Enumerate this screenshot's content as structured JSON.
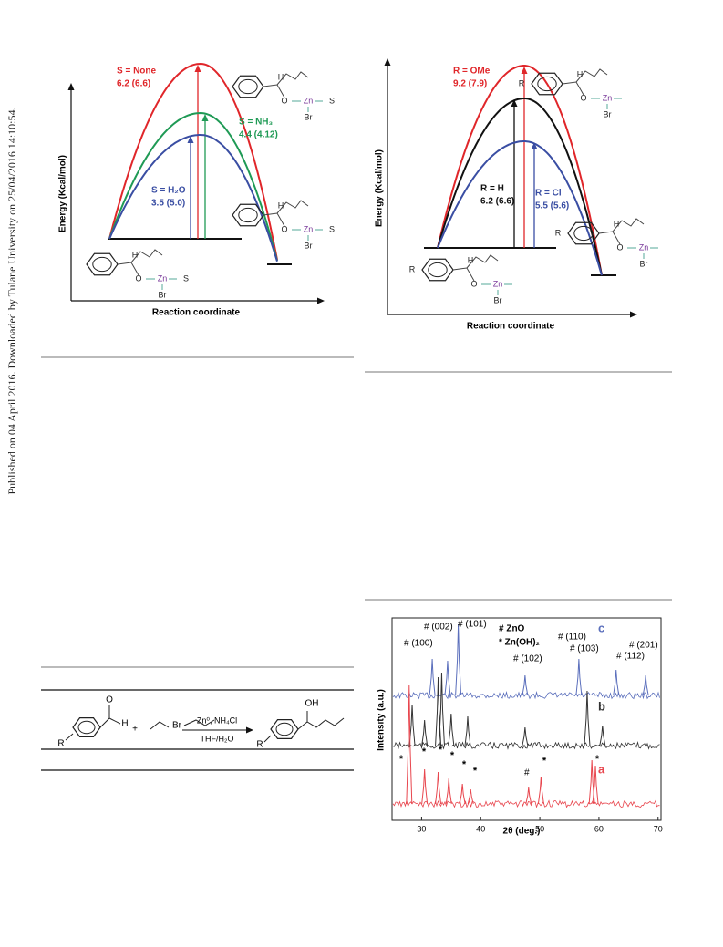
{
  "side_note": "Published on 04 April 2016. Downloaded by Tulane University on 25/04/2016 14:10:54.",
  "figure_left": {
    "y_axis_label": "Energy (Kcal/mol)",
    "x_axis_label": "Reaction coordinate",
    "barriers": [
      {
        "name": "S = None",
        "value_label": "6.2 (6.6)",
        "color": "#e0262a"
      },
      {
        "name": "S = NH₃",
        "value_label": "4.4 (4.12)",
        "color": "#1f9a55"
      },
      {
        "name": "S = H₂O",
        "value_label": "3.5 (5.0)",
        "color": "#3a4ea3"
      }
    ],
    "molecules": [
      {
        "labels": [
          "H",
          "O",
          "Zn",
          "S",
          "Br"
        ]
      },
      {
        "labels": [
          "H",
          "O",
          "Zn",
          "S",
          "Br"
        ]
      },
      {
        "labels": [
          "H",
          "O",
          "Zn",
          "S",
          "Br"
        ]
      }
    ]
  },
  "figure_right": {
    "y_axis_label": "Energy (Kcal/mol)",
    "x_axis_label": "Reaction coordinate",
    "barriers": [
      {
        "name": "R = OMe",
        "value_label": "9.2 (7.9)",
        "color": "#e0262a"
      },
      {
        "name": "R = H",
        "value_label": "6.2 (6.6)",
        "color": "#111111"
      },
      {
        "name": "R = Cl",
        "value_label": "5.5 (5.6)",
        "color": "#3a4ea3"
      }
    ],
    "molecules": [
      {
        "labels": [
          "R",
          "H",
          "O",
          "Zn",
          "Br"
        ]
      },
      {
        "labels": [
          "R",
          "H",
          "O",
          "Zn",
          "Br"
        ]
      },
      {
        "labels": [
          "R",
          "H",
          "O",
          "Zn",
          "Br"
        ]
      }
    ]
  },
  "scheme": {
    "reagents": "Zn⁰, NH₄Cl",
    "solvent": "THF/H₂O",
    "labels": [
      "O",
      "H",
      "R",
      "+",
      "Br",
      "R",
      "OH"
    ]
  },
  "xrd_figure": {
    "type": "line",
    "x_label": "2θ (deg.)",
    "y_label": "Intensity (a.u.)",
    "xlim": [
      25,
      70.5
    ],
    "xticks": [
      30,
      40,
      50,
      60,
      70
    ],
    "legend": [
      "# ZnO",
      "* Zn(OH)₂"
    ],
    "annotations": [
      "# (002)",
      "# (101)",
      "# (100)",
      "# (110)",
      "# (103)",
      "# (201)",
      "# (102)",
      "# (112)",
      "#"
    ],
    "asterisks": [
      "*",
      "*",
      "*",
      "*",
      "*",
      "*",
      "*",
      "*"
    ],
    "series": [
      {
        "name": "c",
        "color": "#5b6fbc",
        "peaks": [
          {
            "x": 31.8,
            "height": 40
          },
          {
            "x": 34.4,
            "height": 38
          },
          {
            "x": 36.2,
            "height": 78
          },
          {
            "x": 47.5,
            "height": 22
          },
          {
            "x": 56.6,
            "height": 40
          },
          {
            "x": 62.9,
            "height": 28
          },
          {
            "x": 67.9,
            "height": 22
          }
        ]
      },
      {
        "name": "b",
        "color": "#333333",
        "peaks": [
          {
            "x": 28.4,
            "height": 45
          },
          {
            "x": 30.5,
            "height": 28
          },
          {
            "x": 32.8,
            "height": 75
          },
          {
            "x": 33.4,
            "height": 80
          },
          {
            "x": 35.0,
            "height": 35
          },
          {
            "x": 37.8,
            "height": 32
          },
          {
            "x": 47.5,
            "height": 20
          },
          {
            "x": 58.0,
            "height": 60
          },
          {
            "x": 60.6,
            "height": 22
          }
        ]
      },
      {
        "name": "a",
        "color": "#e8464e",
        "peaks": [
          {
            "x": 27.9,
            "height": 130
          },
          {
            "x": 30.5,
            "height": 38
          },
          {
            "x": 32.8,
            "height": 35
          },
          {
            "x": 34.6,
            "height": 28
          },
          {
            "x": 36.9,
            "height": 22
          },
          {
            "x": 38.3,
            "height": 16
          },
          {
            "x": 48.1,
            "height": 18
          },
          {
            "x": 50.2,
            "height": 30
          },
          {
            "x": 58.8,
            "height": 48
          },
          {
            "x": 59.4,
            "height": 42
          }
        ]
      }
    ]
  }
}
